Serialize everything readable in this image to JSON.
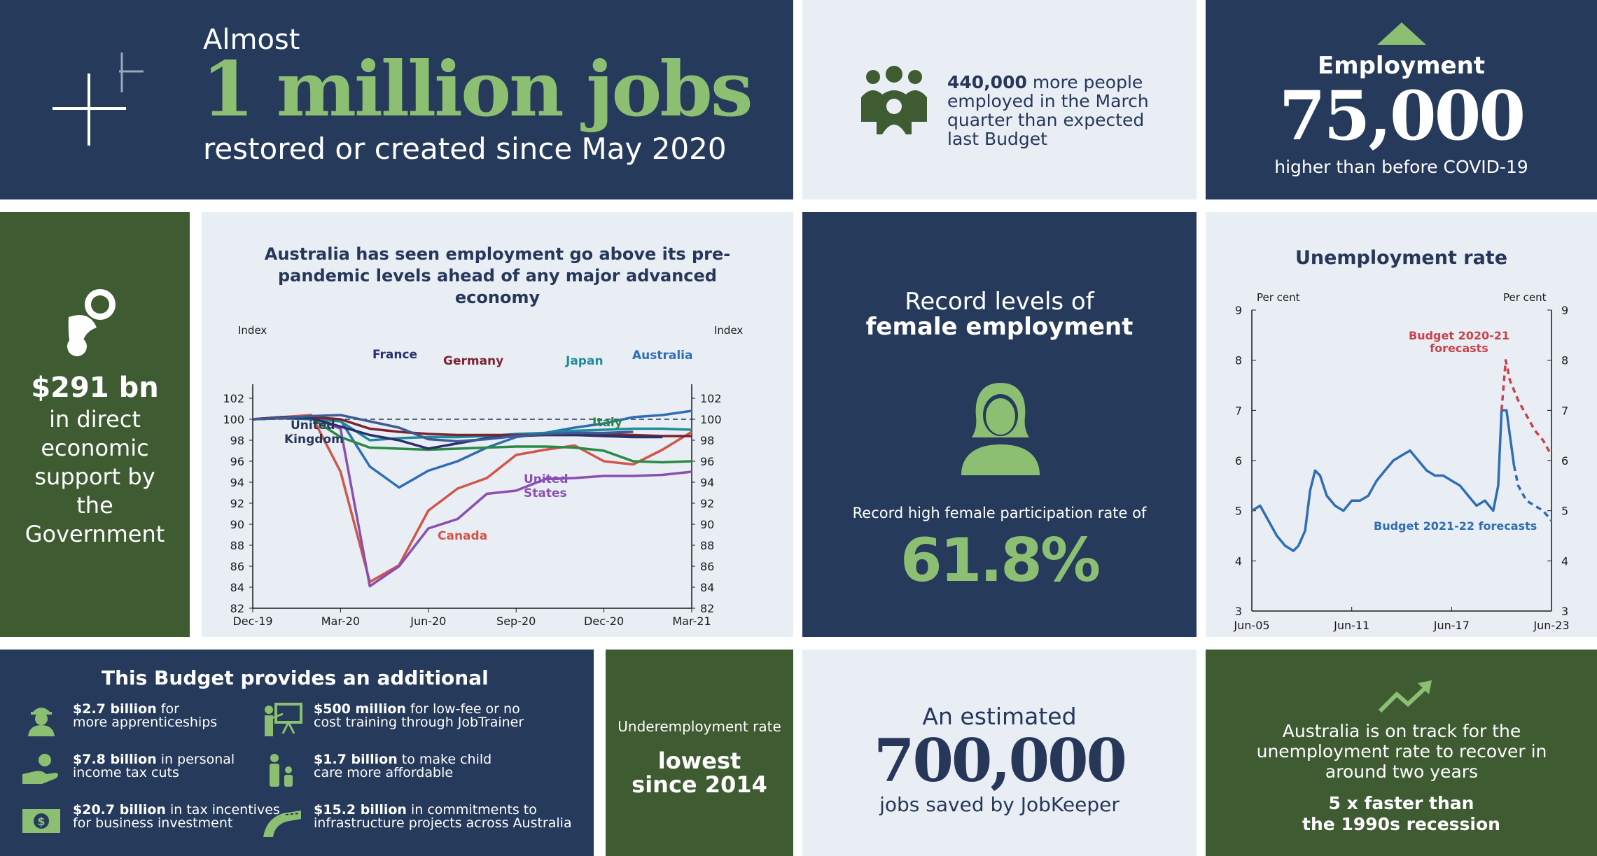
{
  "hero": {
    "almost": "Almost",
    "headline": "1 million jobs",
    "subline": "restored or created since May 2020"
  },
  "more_employed": {
    "number": "440,000",
    "text": "more people employed in the March quarter than expected last Budget"
  },
  "employment": {
    "label": "Employment",
    "value": "75,000",
    "sub": "higher than before COVID-19"
  },
  "support": {
    "amount": "$291 bn",
    "text": "in direct economic support by the Government"
  },
  "employment_chart": {
    "title": "Australia has seen employment go above its pre-pandemic levels ahead of any major advanced economy",
    "left_axis_label": "Index",
    "right_axis_label": "Index",
    "series_labels": {
      "france": "France",
      "germany": "Germany",
      "japan": "Japan",
      "australia": "Australia",
      "uk_1": "United",
      "uk_2": "Kingdom",
      "italy": "Italy",
      "us_1": "United",
      "us_2": "States",
      "canada": "Canada"
    }
  },
  "female": {
    "heading_1": "Record levels of",
    "heading_2": "female employment",
    "rate_text": "Record high female participation rate of",
    "rate": "61.8%"
  },
  "unemp_chart": {
    "title": "Unemployment rate",
    "left_axis_label": "Per cent",
    "right_axis_label": "Per cent",
    "forecast_2020_1": "Budget 2020-21",
    "forecast_2020_2": "forecasts",
    "forecast_2021": "Budget 2021-22 forecasts"
  },
  "budget": {
    "title": "This Budget provides an additional",
    "items": [
      {
        "bold": "$2.7 billion",
        "rest": " for",
        "line2": "more apprenticeships",
        "icon": "worker-icon"
      },
      {
        "bold": "$500 million",
        "rest": " for low-fee or no",
        "line2": "cost training through JobTrainer",
        "icon": "trainer-icon"
      },
      {
        "bold": "$7.8 billion",
        "rest": " in personal",
        "line2": "income tax cuts",
        "icon": "hand-coin-icon"
      },
      {
        "bold": "$1.7 billion",
        "rest": " to make child",
        "line2": "care more affordable",
        "icon": "parent-child-icon"
      },
      {
        "bold": "$20.7 billion",
        "rest": " in tax incentives",
        "line2": "for business investment",
        "icon": "banknote-icon"
      },
      {
        "bold": "$15.2 billion",
        "rest": " in commitments to",
        "line2": "infrastructure projects across Australia",
        "icon": "road-icon"
      }
    ]
  },
  "underemployment": {
    "label": "Underemployment rate",
    "value_1": "lowest",
    "value_2": "since 2014"
  },
  "jobkeeper": {
    "line1": "An estimated",
    "value": "700,000",
    "line3": "jobs saved by JobKeeper"
  },
  "recovery": {
    "text": "Australia is on track for the unemployment rate to recover in around two years",
    "bold_1": "5 x faster than",
    "bold_2": "the 1990s recession"
  },
  "chart_data": [
    {
      "type": "line",
      "title": "Australia has seen employment go above its pre-pandemic levels ahead of any major advanced economy",
      "xlabel": "",
      "ylabel": "Index",
      "x": [
        "Dec-19",
        "Jan-20",
        "Feb-20",
        "Mar-20",
        "Apr-20",
        "May-20",
        "Jun-20",
        "Jul-20",
        "Aug-20",
        "Sep-20",
        "Oct-20",
        "Nov-20",
        "Dec-20",
        "Jan-21",
        "Feb-21",
        "Mar-21"
      ],
      "x_ticks": [
        "Dec-19",
        "Mar-20",
        "Jun-20",
        "Sep-20",
        "Dec-20",
        "Mar-21"
      ],
      "ylim": [
        82,
        102
      ],
      "y_ticks": [
        82,
        84,
        86,
        88,
        90,
        92,
        94,
        96,
        98,
        100,
        102
      ],
      "reference_line": 100,
      "series": [
        {
          "name": "Australia",
          "color": "#2f6db5",
          "values": [
            100,
            100.2,
            100.1,
            99.9,
            95.5,
            93.5,
            95.1,
            96.0,
            97.3,
            98.3,
            98.7,
            99.2,
            99.6,
            100.2,
            100.4,
            100.8
          ]
        },
        {
          "name": "Canada",
          "color": "#d0564a",
          "values": [
            100,
            100.2,
            100.4,
            95.0,
            84.5,
            86.1,
            91.3,
            93.4,
            94.4,
            96.6,
            97.1,
            97.5,
            96.0,
            95.7,
            97.1,
            98.8
          ]
        },
        {
          "name": "United States",
          "color": "#8a4fb0",
          "values": [
            100,
            100.1,
            100.2,
            99.1,
            84.1,
            86.0,
            89.6,
            90.5,
            92.9,
            93.2,
            94.3,
            94.4,
            94.6,
            94.6,
            94.7,
            95.0
          ]
        },
        {
          "name": "Italy",
          "color": "#2a8a44",
          "values": [
            100,
            100.1,
            100.1,
            98.3,
            97.3,
            97.2,
            97.1,
            97.2,
            97.3,
            97.4,
            97.4,
            97.3,
            97.0,
            96.0,
            95.9,
            96.0
          ]
        },
        {
          "name": "Japan",
          "color": "#1f8c9c",
          "values": [
            100,
            100.1,
            100.0,
            99.8,
            98.0,
            98.2,
            98.3,
            98.3,
            98.4,
            98.6,
            98.7,
            98.9,
            99.0,
            99.1,
            99.1,
            99.0
          ]
        },
        {
          "name": "Germany",
          "color": "#7a2430",
          "values": [
            100,
            100.2,
            100.2,
            100.0,
            99.1,
            98.8,
            98.6,
            98.5,
            98.5,
            98.5,
            98.5,
            98.5,
            98.6,
            98.5,
            98.4,
            98.4
          ]
        },
        {
          "name": "France",
          "color": "#2a2f6e",
          "values": [
            100,
            100.1,
            100.1,
            99.3,
            98.5,
            98.0,
            97.2,
            97.7,
            98.2,
            98.4,
            98.5,
            98.5,
            98.4,
            98.3,
            98.3,
            null
          ]
        },
        {
          "name": "United Kingdom",
          "color": "#3d5c96",
          "values": [
            100,
            100.1,
            100.3,
            100.4,
            99.8,
            99.2,
            98.1,
            97.9,
            98.1,
            98.4,
            98.6,
            98.7,
            98.7,
            98.8,
            null,
            null
          ]
        }
      ]
    },
    {
      "type": "line",
      "title": "Unemployment rate",
      "ylabel": "Per cent",
      "x_ticks": [
        "Jun-05",
        "Jun-11",
        "Jun-17",
        "Jun-23"
      ],
      "x_range": [
        2005.5,
        2023.5
      ],
      "ylim": [
        3,
        9
      ],
      "y_ticks": [
        3,
        4,
        5,
        6,
        7,
        8,
        9
      ],
      "series": [
        {
          "name": "Actual",
          "color": "#2f6db5",
          "style": "solid",
          "x": [
            2005.5,
            2006.0,
            2006.5,
            2007.0,
            2007.5,
            2008.0,
            2008.3,
            2008.7,
            2009.0,
            2009.3,
            2009.6,
            2010.0,
            2010.5,
            2011.0,
            2011.5,
            2012.0,
            2012.5,
            2013.0,
            2013.5,
            2014.0,
            2014.5,
            2015.0,
            2015.5,
            2016.0,
            2016.5,
            2017.0,
            2017.5,
            2018.0,
            2018.5,
            2019.0,
            2019.5,
            2020.0,
            2020.3,
            2020.5,
            2020.8,
            2021.0,
            2021.25
          ],
          "y": [
            5.0,
            5.1,
            4.8,
            4.5,
            4.3,
            4.2,
            4.3,
            4.6,
            5.4,
            5.8,
            5.7,
            5.3,
            5.1,
            5.0,
            5.2,
            5.2,
            5.3,
            5.6,
            5.8,
            6.0,
            6.1,
            6.2,
            6.0,
            5.8,
            5.7,
            5.7,
            5.6,
            5.5,
            5.3,
            5.1,
            5.2,
            5.0,
            5.5,
            7.0,
            7.0,
            6.5,
            5.9
          ]
        },
        {
          "name": "Budget 2020-21 forecasts",
          "color": "#c9434a",
          "style": "dashed",
          "x": [
            2020.5,
            2020.75,
            2021.0,
            2021.5,
            2022.0,
            2022.5,
            2023.0,
            2023.5
          ],
          "y": [
            7.0,
            8.0,
            7.6,
            7.2,
            6.9,
            6.6,
            6.4,
            6.1
          ]
        },
        {
          "name": "Budget 2021-22 forecasts",
          "color": "#2f6db5",
          "style": "dashed",
          "x": [
            2021.25,
            2021.5,
            2022.0,
            2022.5,
            2023.0,
            2023.5
          ],
          "y": [
            5.9,
            5.5,
            5.2,
            5.1,
            5.0,
            4.8
          ]
        }
      ]
    }
  ]
}
